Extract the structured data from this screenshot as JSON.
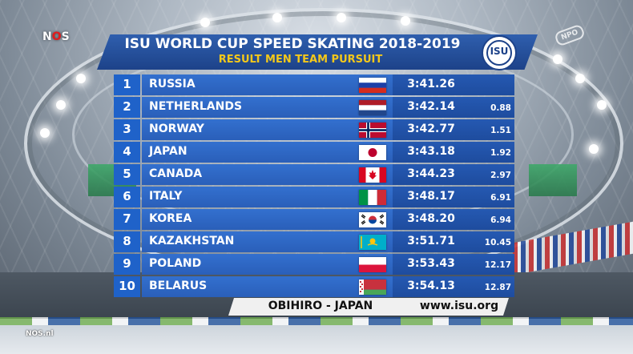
{
  "broadcaster": {
    "logo": "NOS",
    "corner_logo": "NPO",
    "bottom_logo": "NOS.nl"
  },
  "header": {
    "title": "ISU WORLD CUP SPEED SKATING 2018-2019",
    "subtitle": "RESULT MEN TEAM PURSUIT",
    "logo_text": "ISU"
  },
  "results": [
    {
      "rank": "1",
      "country": "RUSSIA",
      "time": "3:41.26",
      "gap": "",
      "flag": "russia-flag-icon"
    },
    {
      "rank": "2",
      "country": "NETHERLANDS",
      "time": "3:42.14",
      "gap": "0.88",
      "flag": "netherlands-flag-icon"
    },
    {
      "rank": "3",
      "country": "NORWAY",
      "time": "3:42.77",
      "gap": "1.51",
      "flag": "norway-flag-icon"
    },
    {
      "rank": "4",
      "country": "JAPAN",
      "time": "3:43.18",
      "gap": "1.92",
      "flag": "japan-flag-icon"
    },
    {
      "rank": "5",
      "country": "CANADA",
      "time": "3:44.23",
      "gap": "2.97",
      "flag": "canada-flag-icon"
    },
    {
      "rank": "6",
      "country": "ITALY",
      "time": "3:48.17",
      "gap": "6.91",
      "flag": "italy-flag-icon"
    },
    {
      "rank": "7",
      "country": "KOREA",
      "time": "3:48.20",
      "gap": "6.94",
      "flag": "korea-flag-icon"
    },
    {
      "rank": "8",
      "country": "KAZAKHSTAN",
      "time": "3:51.71",
      "gap": "10.45",
      "flag": "kazakhstan-flag-icon"
    },
    {
      "rank": "9",
      "country": "POLAND",
      "time": "3:53.43",
      "gap": "12.17",
      "flag": "poland-flag-icon"
    },
    {
      "rank": "10",
      "country": "BELARUS",
      "time": "3:54.13",
      "gap": "12.87",
      "flag": "belarus-flag-icon"
    }
  ],
  "footer": {
    "location": "OBIHIRO - JAPAN",
    "url": "www.isu.org"
  },
  "colors": {
    "banner_blue": "#1d4289",
    "row_blue": "#3370cf",
    "subtitle_yellow": "#f4c81a"
  }
}
